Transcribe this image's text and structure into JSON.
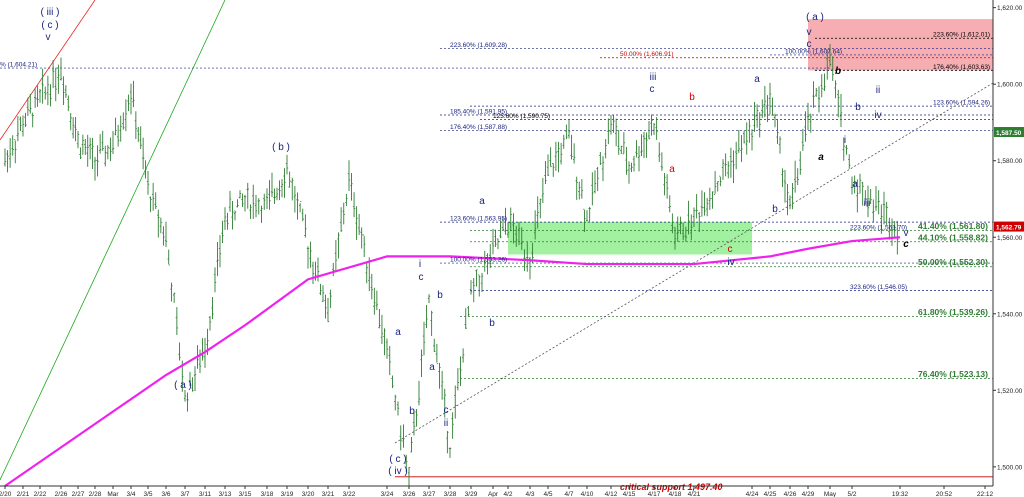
{
  "chart_data": {
    "type": "candlestick",
    "title": "",
    "xlabel": "",
    "ylabel": "",
    "ylim": [
      1495,
      1622
    ],
    "y_ticks": [
      1500,
      1520,
      1540,
      1560,
      1580,
      1600,
      1620
    ],
    "y_tick_labels": [
      "1,500.00",
      "1,520.00",
      "1,540.00",
      "1,560.00",
      "1,580.00",
      "1,600.00",
      "1,620.00"
    ],
    "x_ticks": [
      "2/20",
      "2/21",
      "2/22",
      "2/26",
      "2/27",
      "2/28",
      "Mar",
      "3/4",
      "3/5",
      "3/6",
      "3/7",
      "3/11",
      "3/13",
      "3/15",
      "3/18",
      "3/19",
      "3/20",
      "3/21",
      "3/22",
      "3/24",
      "3/26",
      "3/27",
      "3/28",
      "3/29",
      "Apr",
      "4/2",
      "4/3",
      "4/5",
      "4/7",
      "4/10",
      "4/12",
      "4/15",
      "4/17",
      "4/18",
      "4/21",
      "4/24",
      "4/25",
      "4/26",
      "4/29",
      "May",
      "5/2",
      "19:32",
      "20:52",
      "22:12"
    ],
    "series": [
      {
        "name": "",
        "type": "ohlc",
        "color": "#2e7d32",
        "close_path": [
          {
            "x": "2/20",
            "y": 1580
          },
          {
            "x": "2/21",
            "y": 1590
          },
          {
            "x": "2/22",
            "y": 1596
          },
          {
            "x": "2/26",
            "y": 1604
          },
          {
            "x": "2/27",
            "y": 1585
          },
          {
            "x": "2/28",
            "y": 1580
          },
          {
            "x": "Mar",
            "y": 1584
          },
          {
            "x": "3/4",
            "y": 1598
          },
          {
            "x": "3/5",
            "y": 1573
          },
          {
            "x": "3/6",
            "y": 1560
          },
          {
            "x": "3/7",
            "y": 1518
          },
          {
            "x": "3/11",
            "y": 1531
          },
          {
            "x": "3/13",
            "y": 1565
          },
          {
            "x": "3/15",
            "y": 1570
          },
          {
            "x": "3/18",
            "y": 1568
          },
          {
            "x": "3/19",
            "y": 1578
          },
          {
            "x": "3/20",
            "y": 1558
          },
          {
            "x": "3/21",
            "y": 1541
          },
          {
            "x": "3/22",
            "y": 1575
          },
          {
            "x": "3/24",
            "y": 1530
          },
          {
            "x": "3/26",
            "y": 1497.5
          },
          {
            "x": "3/27",
            "y": 1543
          },
          {
            "x": "3/28",
            "y": 1506
          },
          {
            "x": "3/29",
            "y": 1545
          },
          {
            "x": "Apr",
            "y": 1556
          },
          {
            "x": "4/2",
            "y": 1564
          },
          {
            "x": "4/3",
            "y": 1555
          },
          {
            "x": "4/5",
            "y": 1577
          },
          {
            "x": "4/7",
            "y": 1586
          },
          {
            "x": "4/10",
            "y": 1565
          },
          {
            "x": "4/12",
            "y": 1590
          },
          {
            "x": "4/15",
            "y": 1578
          },
          {
            "x": "4/17",
            "y": 1590
          },
          {
            "x": "4/18",
            "y": 1560
          },
          {
            "x": "4/21",
            "y": 1565
          },
          {
            "x": "4/24",
            "y": 1588
          },
          {
            "x": "4/25",
            "y": 1597
          },
          {
            "x": "4/26",
            "y": 1567
          },
          {
            "x": "4/29",
            "y": 1590
          },
          {
            "x": "May",
            "y": 1606
          },
          {
            "x": "5/2",
            "y": 1575
          },
          {
            "x": "19:32",
            "y": 1562
          }
        ]
      },
      {
        "name": "",
        "type": "moving_average",
        "color": "#ee22ee",
        "points": [
          {
            "x": "2/20",
            "y": 1495
          },
          {
            "x": "3/6",
            "y": 1524
          },
          {
            "x": "3/11",
            "y": 1530
          },
          {
            "x": "3/15",
            "y": 1537
          },
          {
            "x": "3/20",
            "y": 1549
          },
          {
            "x": "3/24",
            "y": 1555
          },
          {
            "x": "3/28",
            "y": 1555
          },
          {
            "x": "4/3",
            "y": 1554
          },
          {
            "x": "4/10",
            "y": 1553
          },
          {
            "x": "4/15",
            "y": 1553
          },
          {
            "x": "4/21",
            "y": 1553
          },
          {
            "x": "4/25",
            "y": 1555
          },
          {
            "x": "4/29",
            "y": 1557
          },
          {
            "x": "5/2",
            "y": 1559
          },
          {
            "x": "19:32",
            "y": 1560
          }
        ]
      }
    ],
    "fib_levels_right": [
      {
        "label": "223.60% (1,612.01)",
        "value": 1612.01
      },
      {
        "label": "176.40% (1,603.63)",
        "value": 1603.63
      },
      {
        "label": "123.60% (1,594.26)",
        "value": 1594.26
      },
      {
        "label": "41.40% (1,561.80)",
        "value": 1561.8
      },
      {
        "label": "44.10% (1,558.82)",
        "value": 1558.82
      },
      {
        "label": "50.00% (1,552.30)",
        "value": 1552.3
      },
      {
        "label": "323.60% (1,546.05)",
        "value": 1546.05
      },
      {
        "label": "61.80% (1,539.26)",
        "value": 1539.26
      },
      {
        "label": "76.40% (1,523.13)",
        "value": 1523.13
      }
    ],
    "fib_levels_mid": [
      {
        "label": "223.60% (1,609.28)",
        "value": 1609.28
      },
      {
        "label": "50.00% (1,606.91)",
        "value": 1606.91
      },
      {
        "label": "100.00% (1,607.64)",
        "value": 1607.64
      },
      {
        "label": "185.40% (1,591.95)",
        "value": 1591.95
      },
      {
        "label": "123.60% (1,590.75)",
        "value": 1590.75
      },
      {
        "label": "176.40% (1,587.88)",
        "value": 1587.88
      },
      {
        "label": "123.60% (1,563.95)",
        "value": 1563.95
      },
      {
        "label": "100.00% (1,553.26)",
        "value": 1553.26
      },
      {
        "label": "223.60% (1,561.70)",
        "value": 1561.7
      }
    ],
    "left_level": {
      "label": "% (1,604.21)",
      "value": 1604.21
    },
    "critical_support": {
      "label": "critical support 1,497.40",
      "value": 1497.4
    },
    "price_markers": [
      {
        "label": "1,587.50",
        "value": 1587.5,
        "color": "#2e7d32"
      },
      {
        "label": "1,562.79",
        "value": 1562.79,
        "color": "#cc0000"
      }
    ],
    "zones": [
      {
        "name": "resistance",
        "y_from": 1603.6,
        "y_to": 1617.0,
        "x_from": "May",
        "x_to": "22:12",
        "color": "#f4a0a6"
      },
      {
        "name": "support",
        "y_from": 1555.5,
        "y_to": 1564.0,
        "x_from": "4/3",
        "x_to": "4/24",
        "color": "#90ee90"
      }
    ],
    "wave_labels": [
      {
        "text": "( iii )",
        "color": "#1a237e"
      },
      {
        "text": "( c )",
        "color": "#1a237e"
      },
      {
        "text": "v",
        "color": "#1a237e"
      },
      {
        "text": "( b )",
        "color": "#1a237e"
      },
      {
        "text": "( a )",
        "color": "#1a237e"
      },
      {
        "text": "( c )",
        "color": "#1a237e"
      },
      {
        "text": "( iv )",
        "color": "#1a237e"
      },
      {
        "text": "( a )",
        "color": "#1a237e"
      },
      {
        "text": "v",
        "color": "#1a237e"
      },
      {
        "text": "c",
        "color": "#1a237e"
      },
      {
        "text": "iii",
        "color": "#1a237e"
      },
      {
        "text": "c",
        "color": "#1a237e"
      },
      {
        "text": "a",
        "color": "#1a237e"
      },
      {
        "text": "b",
        "color": "#cc0000"
      },
      {
        "text": "a",
        "color": "#cc0000"
      },
      {
        "text": "i",
        "color": "#1a237e"
      },
      {
        "text": "c",
        "color": "#1a237e"
      },
      {
        "text": "a",
        "color": "#1a237e"
      },
      {
        "text": "b",
        "color": "#1a237e"
      },
      {
        "text": "b",
        "color": "#1a237e"
      },
      {
        "text": "a",
        "color": "#1a237e"
      },
      {
        "text": "c",
        "color": "#1a237e"
      },
      {
        "text": "ii",
        "color": "#1a237e"
      },
      {
        "text": "b",
        "color": "#1a237e"
      },
      {
        "text": "a",
        "color": "#1a237e"
      },
      {
        "text": "b",
        "color": "#1a237e"
      },
      {
        "text": "c",
        "color": "#cc0000"
      },
      {
        "text": "iv",
        "color": "#1a237e"
      },
      {
        "text": "b",
        "color": "#000000"
      },
      {
        "text": "a",
        "color": "#000000"
      },
      {
        "text": "ii",
        "color": "#1a237e"
      },
      {
        "text": "i",
        "color": "#1a237e"
      },
      {
        "text": "b",
        "color": "#1a237e"
      },
      {
        "text": "iv",
        "color": "#1a237e"
      },
      {
        "text": "a",
        "color": "#1a237e"
      },
      {
        "text": "iii",
        "color": "#1a237e"
      },
      {
        "text": "v",
        "color": "#1a237e"
      },
      {
        "text": "c",
        "color": "#000000"
      }
    ],
    "grid": false,
    "legend": "none"
  }
}
